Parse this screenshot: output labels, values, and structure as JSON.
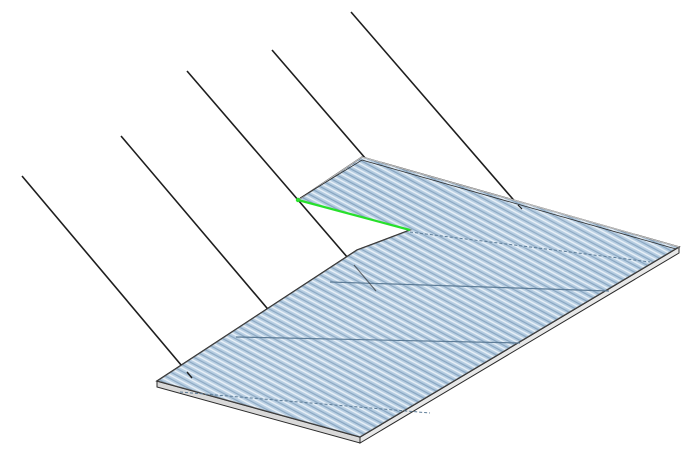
{
  "viewport": {
    "background": "#ffffff"
  },
  "model": {
    "panel_fill": "#a9c4dc",
    "panel_fill_light": "#cfe0ee",
    "corrugation_dark": "#6f93b4",
    "corrugation_light": "#e4eef7",
    "frame_color": "#2b2b2b",
    "support_line_color": "#1e1e1e",
    "selected_edge_color": "#27e02b",
    "support_lines": 6,
    "selected_edges": 1
  }
}
